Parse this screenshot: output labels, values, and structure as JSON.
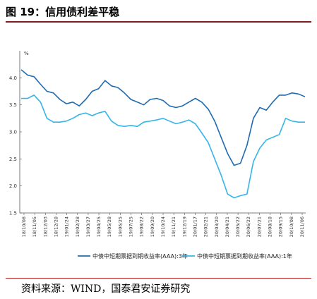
{
  "figure": {
    "title": "图 19：信用债利差平稳",
    "source": "资料来源：WIND，国泰君安证券研究"
  },
  "chart_data": {
    "type": "line",
    "unit": "%",
    "ylim": [
      1.5,
      4.5
    ],
    "yticks": [
      1.5,
      2.0,
      2.5,
      3.0,
      3.5,
      4.0
    ],
    "ytick_labels": [
      "1.5",
      "2.0",
      "2.5",
      "3.0",
      "3.5",
      "4.0"
    ],
    "xtick_labels": [
      "18/10/08",
      "18/11/05",
      "18/12/03",
      "18/12/28",
      "19/01/24",
      "19/02/28",
      "19/03/27",
      "19/04/25",
      "19/05/28",
      "19/06/25",
      "19/07/25",
      "19/08/22",
      "19/09/20",
      "19/10/24",
      "19/11/21",
      "19/12/19",
      "20/01/17",
      "20/02/21",
      "20/03/20",
      "20/04/21",
      "20/05/22",
      "20/06/22",
      "20/07/21",
      "20/08/18",
      "20/09/15",
      "20/10/08",
      "20/11/06"
    ],
    "legend_position": "bottom",
    "grid": false,
    "series": [
      {
        "name": "中债中短期票据到期收益率(AAA):3年",
        "color": "#1f6bb0",
        "values": [
          4.15,
          4.05,
          4.02,
          3.88,
          3.75,
          3.72,
          3.6,
          3.52,
          3.55,
          3.48,
          3.6,
          3.75,
          3.8,
          3.95,
          3.85,
          3.82,
          3.72,
          3.6,
          3.55,
          3.5,
          3.6,
          3.62,
          3.58,
          3.48,
          3.45,
          3.48,
          3.55,
          3.62,
          3.55,
          3.42,
          3.2,
          2.9,
          2.6,
          2.38,
          2.42,
          2.75,
          3.25,
          3.45,
          3.4,
          3.55,
          3.68,
          3.68,
          3.72,
          3.7,
          3.65
        ]
      },
      {
        "name": "中债中短期票据到期收益率(AAA):1年",
        "color": "#35b5e8",
        "values": [
          3.62,
          3.62,
          3.68,
          3.55,
          3.25,
          3.18,
          3.18,
          3.2,
          3.25,
          3.32,
          3.35,
          3.3,
          3.35,
          3.38,
          3.2,
          3.12,
          3.1,
          3.12,
          3.1,
          3.18,
          3.2,
          3.22,
          3.25,
          3.2,
          3.15,
          3.18,
          3.22,
          3.15,
          2.98,
          2.8,
          2.5,
          2.2,
          1.85,
          1.78,
          1.82,
          1.85,
          2.45,
          2.7,
          2.85,
          2.9,
          2.95,
          3.25,
          3.2,
          3.18,
          3.18
        ]
      }
    ]
  }
}
